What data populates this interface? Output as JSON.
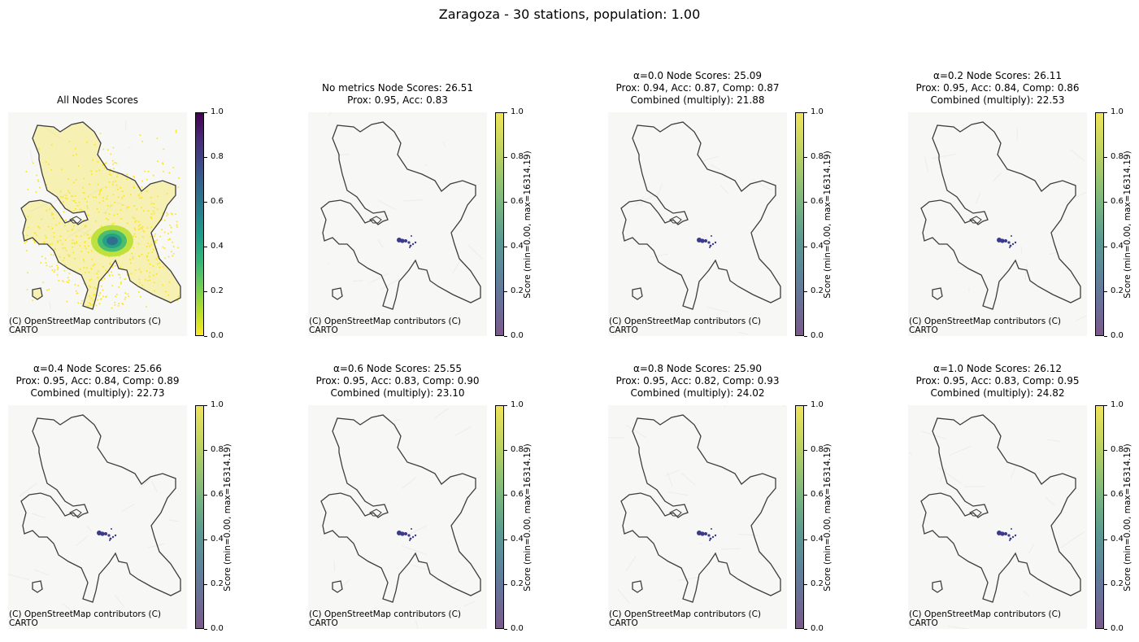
{
  "figure": {
    "title": "Zaragoza - 30 stations, population: 1.00"
  },
  "attribution": "(C) OpenStreetMap contributors (C)\nCARTO",
  "colorbar_ticks": [
    "0.0",
    "0.2",
    "0.4",
    "0.6",
    "0.8",
    "1.0"
  ],
  "colorbar_label": "Score (min=0.00, max=16314.19)",
  "panels": [
    {
      "title": "All Nodes Scores",
      "type": "all-nodes",
      "colormap": "viridis_r"
    },
    {
      "title": "No metrics Node Scores: 26.51\nProx: 0.95, Acc: 0.83",
      "type": "stations",
      "colormap": "viridis"
    },
    {
      "title": "α=0.0 Node Scores: 25.09\nProx: 0.94, Acc: 0.87, Comp: 0.87\nCombined (multiply): 21.88",
      "type": "stations",
      "colormap": "viridis"
    },
    {
      "title": "α=0.2 Node Scores: 26.11\nProx: 0.95, Acc: 0.84, Comp: 0.86\nCombined (multiply): 22.53",
      "type": "stations",
      "colormap": "viridis"
    },
    {
      "title": "α=0.4 Node Scores: 25.66\nProx: 0.95, Acc: 0.84, Comp: 0.89\nCombined (multiply): 22.73",
      "type": "stations",
      "colormap": "viridis"
    },
    {
      "title": "α=0.6 Node Scores: 25.55\nProx: 0.95, Acc: 0.83, Comp: 0.90\nCombined (multiply): 23.10",
      "type": "stations",
      "colormap": "viridis"
    },
    {
      "title": "α=0.8 Node Scores: 25.90\nProx: 0.95, Acc: 0.82, Comp: 0.93\nCombined (multiply): 24.02",
      "type": "stations",
      "colormap": "viridis"
    },
    {
      "title": "α=1.0 Node Scores: 26.12\nProx: 0.95, Acc: 0.83, Comp: 0.95\nCombined (multiply): 24.82",
      "type": "stations",
      "colormap": "viridis"
    }
  ]
}
